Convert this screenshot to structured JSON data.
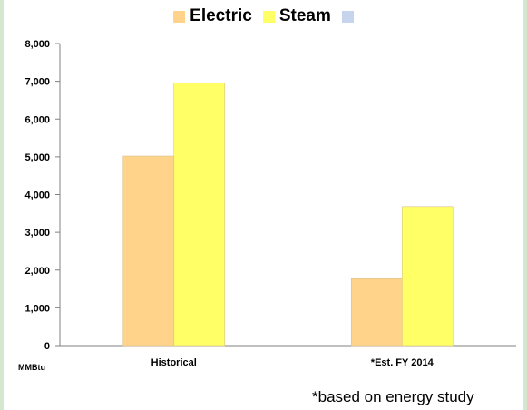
{
  "chart_data": {
    "type": "bar",
    "categories": [
      "Historical",
      "*Est. FY 2014"
    ],
    "series": [
      {
        "name": "Electric",
        "values": [
          5020,
          1770
        ],
        "color": "#ffd48a"
      },
      {
        "name": "Steam",
        "values": [
          6960,
          3680
        ],
        "color": "#ffff66"
      },
      {
        "name": "",
        "values": [
          0,
          0
        ],
        "color": "#c6d4ee"
      }
    ],
    "ylim": [
      0,
      8000
    ],
    "yticks": [
      0,
      1000,
      2000,
      3000,
      4000,
      5000,
      6000,
      7000,
      8000
    ],
    "ytick_labels": [
      "0",
      "1,000",
      "2,000",
      "3,000",
      "4,000",
      "5,000",
      "6,000",
      "7,000",
      "8,000"
    ],
    "unit_label": "MMBtu",
    "legend_position": "top",
    "grid": false
  },
  "footnote": "*based on energy study"
}
